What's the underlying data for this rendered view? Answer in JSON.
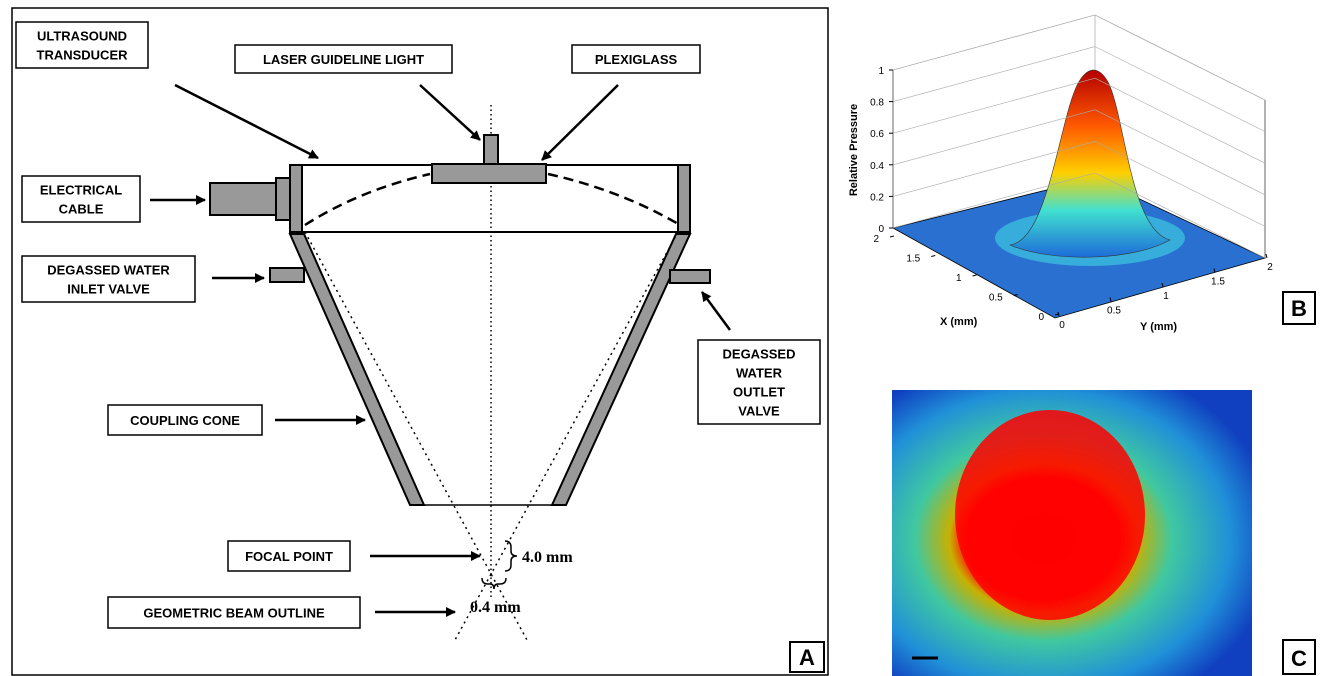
{
  "panel_a": {
    "labels": [
      {
        "lines": [
          "ULTRASOUND",
          "TRANSDUCER"
        ]
      },
      {
        "lines": [
          "LASER GUIDELINE LIGHT"
        ]
      },
      {
        "lines": [
          "PLEXIGLASS"
        ]
      },
      {
        "lines": [
          "ELECTRICAL",
          "CABLE"
        ]
      },
      {
        "lines": [
          "DEGASSED WATER",
          "INLET VALVE"
        ]
      },
      {
        "lines": [
          "DEGASSED",
          "WATER",
          "OUTLET",
          "VALVE"
        ]
      },
      {
        "lines": [
          "COUPLING CONE"
        ]
      },
      {
        "lines": [
          "FOCAL POINT"
        ]
      },
      {
        "lines": [
          "GEOMETRIC BEAM OUTLINE"
        ]
      }
    ],
    "dimensions": [
      "4.0 mm",
      "0.4 mm"
    ],
    "panel_label": "A"
  },
  "panel_b": {
    "z_label": "Relative Pressure",
    "x_label": "X (mm)",
    "y_label": "Y (mm)",
    "zticks": [
      0,
      0.2,
      0.4,
      0.6,
      0.8,
      1
    ],
    "xticks": [
      0,
      0.5,
      1,
      1.5,
      2
    ],
    "yticks": [
      0,
      0.5,
      1,
      1.5,
      2
    ],
    "panel_label": "B"
  },
  "panel_c": {
    "panel_label": "C"
  }
}
